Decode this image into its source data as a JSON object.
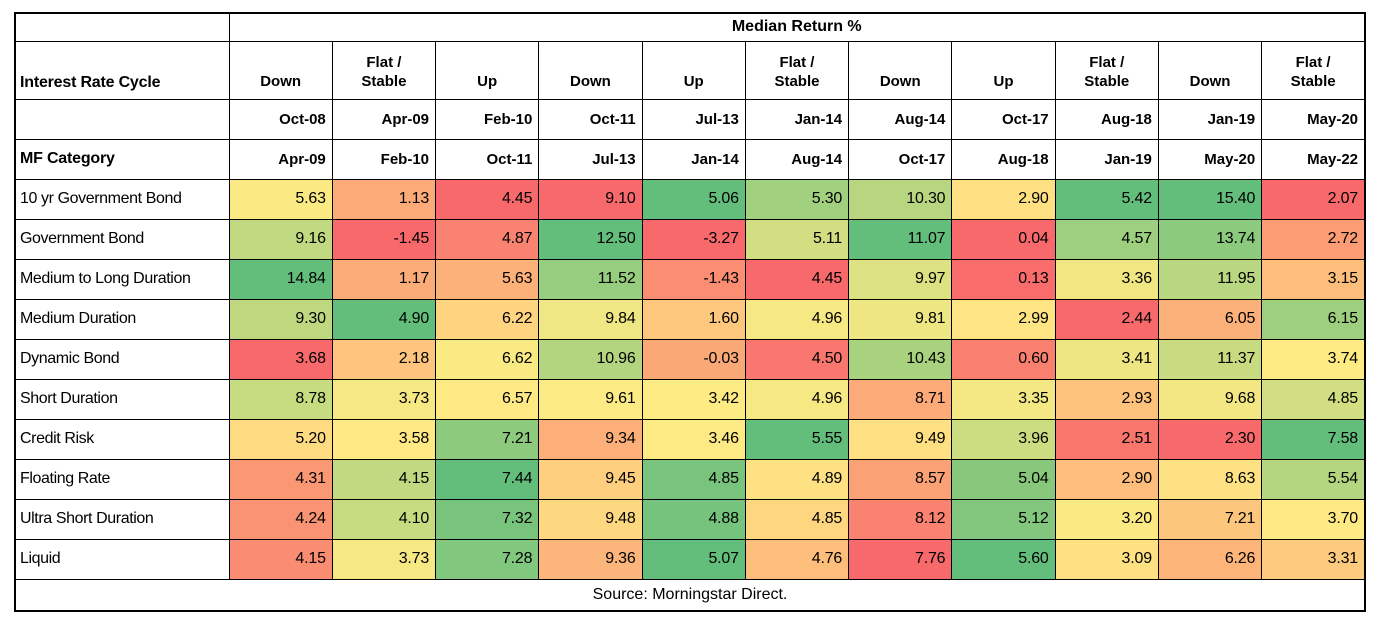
{
  "chart_data": {
    "type": "heatmap",
    "title": "Median Return %",
    "column_header": "Interest Rate Cycle",
    "row_header": "MF Category",
    "source": "Source: Morningstar Direct.",
    "legend": "cells colored per column: min=red, median=yellow, max=green",
    "color_scale": {
      "direction": "per-column",
      "midpoint": "median",
      "min_color": "#F8696B",
      "mid_color": "#FFEB84",
      "max_color": "#63BE7B"
    },
    "columns": [
      {
        "cycle": "Down",
        "from": "Oct-08",
        "to": "Apr-09"
      },
      {
        "cycle": "Flat / Stable",
        "from": "Apr-09",
        "to": "Feb-10"
      },
      {
        "cycle": "Up",
        "from": "Feb-10",
        "to": "Oct-11"
      },
      {
        "cycle": "Down",
        "from": "Oct-11",
        "to": "Jul-13"
      },
      {
        "cycle": "Up",
        "from": "Jul-13",
        "to": "Jan-14"
      },
      {
        "cycle": "Flat / Stable",
        "from": "Jan-14",
        "to": "Aug-14"
      },
      {
        "cycle": "Down",
        "from": "Aug-14",
        "to": "Oct-17"
      },
      {
        "cycle": "Up",
        "from": "Oct-17",
        "to": "Aug-18"
      },
      {
        "cycle": "Flat / Stable",
        "from": "Aug-18",
        "to": "Jan-19"
      },
      {
        "cycle": "Down",
        "from": "Jan-19",
        "to": "May-20"
      },
      {
        "cycle": "Flat / Stable",
        "from": "May-20",
        "to": "May-22"
      }
    ],
    "rows": [
      "10 yr Government Bond",
      "Government Bond",
      "Medium to Long Duration",
      "Medium Duration",
      "Dynamic Bond",
      "Short Duration",
      "Credit Risk",
      "Floating Rate",
      "Ultra Short Duration",
      "Liquid"
    ],
    "values": [
      [
        5.63,
        1.13,
        4.45,
        9.1,
        5.06,
        5.3,
        10.3,
        2.9,
        5.42,
        15.4,
        2.07
      ],
      [
        9.16,
        -1.45,
        4.87,
        12.5,
        -3.27,
        5.11,
        11.07,
        0.04,
        4.57,
        13.74,
        2.72
      ],
      [
        14.84,
        1.17,
        5.63,
        11.52,
        -1.43,
        4.45,
        9.97,
        0.13,
        3.36,
        11.95,
        3.15
      ],
      [
        9.3,
        4.9,
        6.22,
        9.84,
        1.6,
        4.96,
        9.81,
        2.99,
        2.44,
        6.05,
        6.15
      ],
      [
        3.68,
        2.18,
        6.62,
        10.96,
        -0.03,
        4.5,
        10.43,
        0.6,
        3.41,
        11.37,
        3.74
      ],
      [
        8.78,
        3.73,
        6.57,
        9.61,
        3.42,
        4.96,
        8.71,
        3.35,
        2.93,
        9.68,
        4.85
      ],
      [
        5.2,
        3.58,
        7.21,
        9.34,
        3.46,
        5.55,
        9.49,
        3.96,
        2.51,
        2.3,
        7.58
      ],
      [
        4.31,
        4.15,
        7.44,
        9.45,
        4.85,
        4.89,
        8.57,
        5.04,
        2.9,
        8.63,
        5.54
      ],
      [
        4.24,
        4.1,
        7.32,
        9.48,
        4.88,
        4.85,
        8.12,
        5.12,
        3.2,
        7.21,
        3.7
      ],
      [
        4.15,
        3.73,
        7.28,
        9.36,
        5.07,
        4.76,
        7.76,
        5.6,
        3.09,
        6.26,
        3.31
      ]
    ]
  }
}
